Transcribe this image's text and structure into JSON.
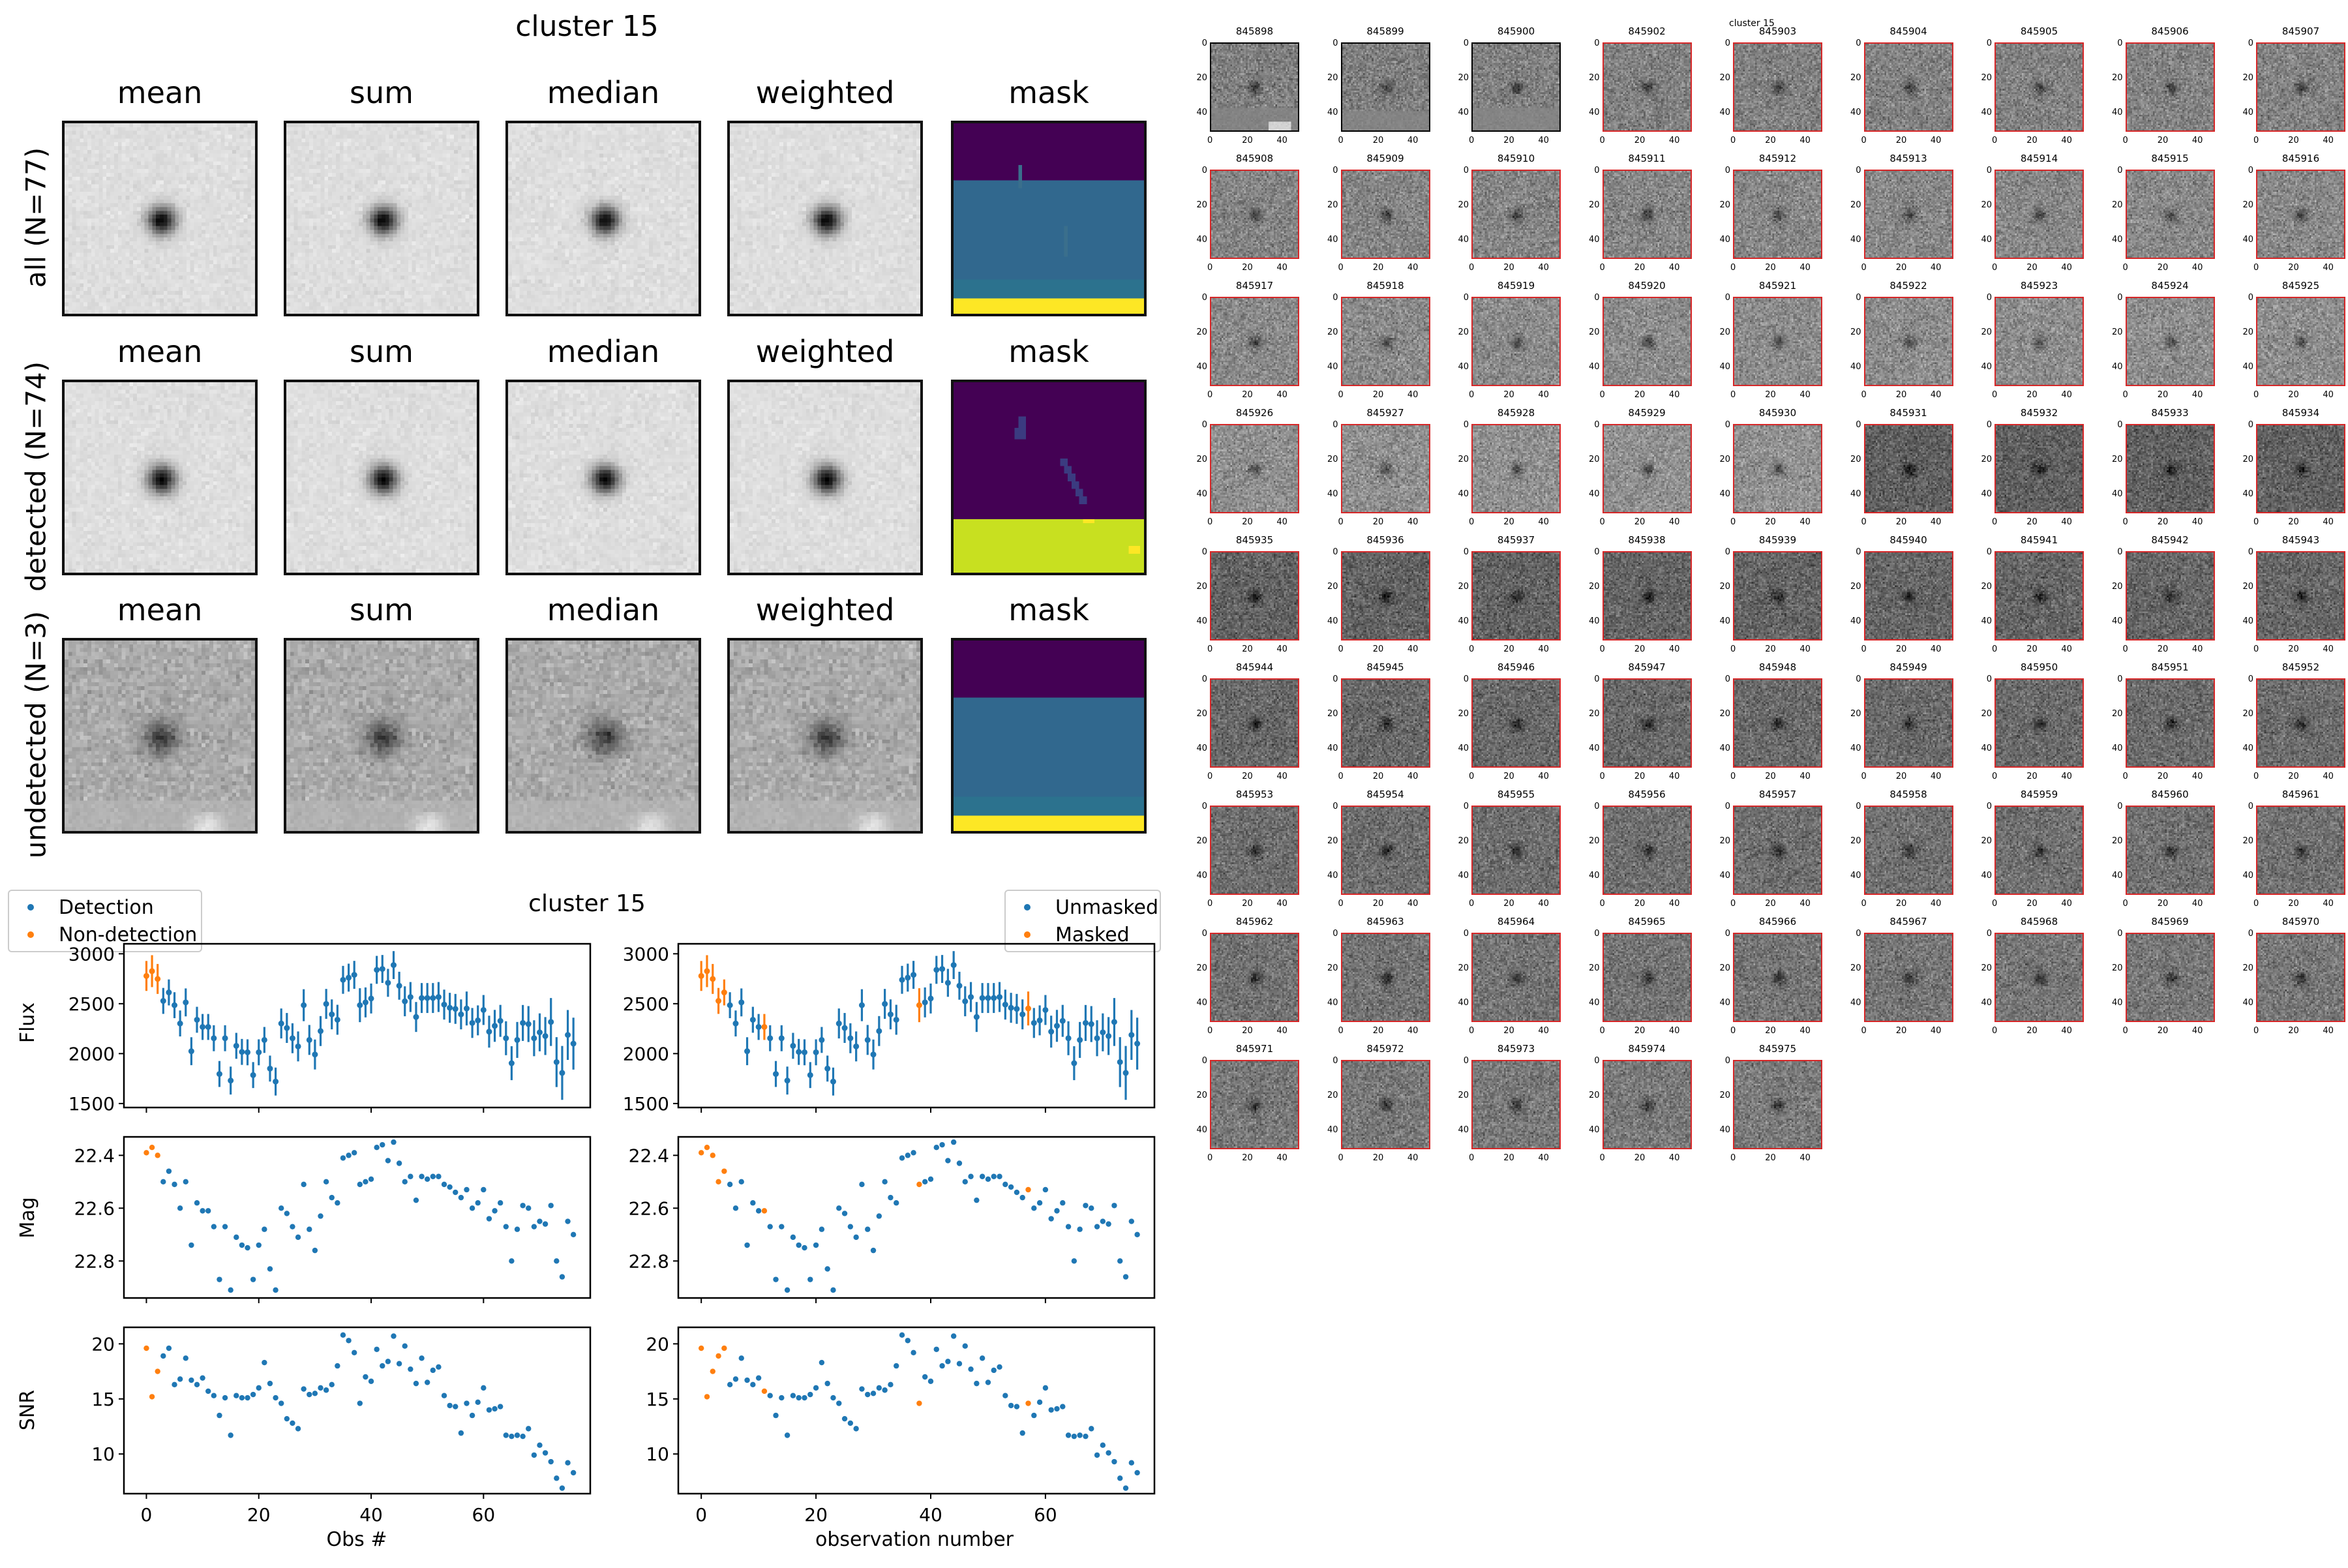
{
  "stamps": {
    "title": "cluster 15",
    "columns": [
      "mean",
      "sum",
      "median",
      "weighted",
      "mask"
    ],
    "rows": [
      {
        "label": "all (N=77)",
        "kind": "all"
      },
      {
        "label": "detected (N=74)",
        "kind": "detected"
      },
      {
        "label": "undetected (N=3)",
        "kind": "undetected"
      }
    ],
    "mask_colors": {
      "dark": "#440154",
      "mid": "#31688e",
      "teal": "#2c728e",
      "yellow": "#fde725",
      "lime": "#c8e020"
    }
  },
  "colors": {
    "detection": "#1f77b4",
    "non_detection": "#ff7f0e",
    "cutout_border_detected": "#d62728",
    "cutout_border_undetected": "#000000"
  },
  "cutouts": {
    "title": "cluster 15",
    "axis_ticks": [
      "0",
      "20",
      "40"
    ],
    "items": [
      {
        "id": "845898",
        "detected": false
      },
      {
        "id": "845899",
        "detected": false
      },
      {
        "id": "845900",
        "detected": false
      },
      {
        "id": "845902",
        "detected": true
      },
      {
        "id": "845903",
        "detected": true
      },
      {
        "id": "845904",
        "detected": true
      },
      {
        "id": "845905",
        "detected": true
      },
      {
        "id": "845906",
        "detected": true
      },
      {
        "id": "845907",
        "detected": true
      },
      {
        "id": "845908",
        "detected": true
      },
      {
        "id": "845909",
        "detected": true
      },
      {
        "id": "845910",
        "detected": true
      },
      {
        "id": "845911",
        "detected": true
      },
      {
        "id": "845912",
        "detected": true
      },
      {
        "id": "845913",
        "detected": true
      },
      {
        "id": "845914",
        "detected": true
      },
      {
        "id": "845915",
        "detected": true
      },
      {
        "id": "845916",
        "detected": true
      },
      {
        "id": "845917",
        "detected": true
      },
      {
        "id": "845918",
        "detected": true
      },
      {
        "id": "845919",
        "detected": true
      },
      {
        "id": "845920",
        "detected": true
      },
      {
        "id": "845921",
        "detected": true
      },
      {
        "id": "845922",
        "detected": true
      },
      {
        "id": "845923",
        "detected": true
      },
      {
        "id": "845924",
        "detected": true
      },
      {
        "id": "845925",
        "detected": true
      },
      {
        "id": "845926",
        "detected": true
      },
      {
        "id": "845927",
        "detected": true
      },
      {
        "id": "845928",
        "detected": true
      },
      {
        "id": "845929",
        "detected": true
      },
      {
        "id": "845930",
        "detected": true
      },
      {
        "id": "845931",
        "detected": true
      },
      {
        "id": "845932",
        "detected": true
      },
      {
        "id": "845933",
        "detected": true
      },
      {
        "id": "845934",
        "detected": true
      },
      {
        "id": "845935",
        "detected": true
      },
      {
        "id": "845936",
        "detected": true
      },
      {
        "id": "845937",
        "detected": true
      },
      {
        "id": "845938",
        "detected": true
      },
      {
        "id": "845939",
        "detected": true
      },
      {
        "id": "845940",
        "detected": true
      },
      {
        "id": "845941",
        "detected": true
      },
      {
        "id": "845942",
        "detected": true
      },
      {
        "id": "845943",
        "detected": true
      },
      {
        "id": "845944",
        "detected": true
      },
      {
        "id": "845945",
        "detected": true
      },
      {
        "id": "845946",
        "detected": true
      },
      {
        "id": "845947",
        "detected": true
      },
      {
        "id": "845948",
        "detected": true
      },
      {
        "id": "845949",
        "detected": true
      },
      {
        "id": "845950",
        "detected": true
      },
      {
        "id": "845951",
        "detected": true
      },
      {
        "id": "845952",
        "detected": true
      },
      {
        "id": "845953",
        "detected": true
      },
      {
        "id": "845954",
        "detected": true
      },
      {
        "id": "845955",
        "detected": true
      },
      {
        "id": "845956",
        "detected": true
      },
      {
        "id": "845957",
        "detected": true
      },
      {
        "id": "845958",
        "detected": true
      },
      {
        "id": "845959",
        "detected": true
      },
      {
        "id": "845960",
        "detected": true
      },
      {
        "id": "845961",
        "detected": true
      },
      {
        "id": "845962",
        "detected": true
      },
      {
        "id": "845963",
        "detected": true
      },
      {
        "id": "845964",
        "detected": true
      },
      {
        "id": "845965",
        "detected": true
      },
      {
        "id": "845966",
        "detected": true
      },
      {
        "id": "845967",
        "detected": true
      },
      {
        "id": "845968",
        "detected": true
      },
      {
        "id": "845969",
        "detected": true
      },
      {
        "id": "845970",
        "detected": true
      },
      {
        "id": "845971",
        "detected": true
      },
      {
        "id": "845972",
        "detected": true
      },
      {
        "id": "845973",
        "detected": true
      },
      {
        "id": "845974",
        "detected": true
      },
      {
        "id": "845975",
        "detected": true
      }
    ]
  },
  "chart_data": {
    "type": "scatter",
    "title": "cluster 15",
    "x": [
      0,
      1,
      2,
      3,
      4,
      5,
      6,
      7,
      8,
      9,
      10,
      11,
      12,
      13,
      14,
      15,
      16,
      17,
      18,
      19,
      20,
      21,
      22,
      23,
      24,
      25,
      26,
      27,
      28,
      29,
      30,
      31,
      32,
      33,
      34,
      35,
      36,
      37,
      38,
      39,
      40,
      41,
      42,
      43,
      44,
      45,
      46,
      47,
      48,
      49,
      50,
      51,
      52,
      53,
      54,
      55,
      56,
      57,
      58,
      59,
      60,
      61,
      62,
      63,
      64,
      65,
      66,
      67,
      68,
      69,
      70,
      71,
      72,
      73,
      74,
      75,
      76
    ],
    "xlim": [
      -4,
      79
    ],
    "xticks": [
      0,
      20,
      40,
      60
    ],
    "xlabel_left": "Obs #",
    "xlabel_right": "observation number",
    "legend_left": {
      "position": "upper-left",
      "entries": [
        "Detection",
        "Non-detection"
      ]
    },
    "legend_right": {
      "position": "upper-right",
      "entries": [
        "Unmasked",
        "Masked"
      ]
    },
    "non_detection_indices": [
      0,
      1,
      2
    ],
    "masked_indices": [
      0,
      1,
      2,
      3,
      4,
      11,
      38,
      57
    ],
    "flux": {
      "ylabel": "Flux",
      "ylim": [
        1460,
        3100
      ],
      "yticks": [
        1500,
        2000,
        2500,
        3000
      ],
      "values": [
        2778,
        2826,
        2748,
        2528,
        2613,
        2485,
        2302,
        2513,
        2024,
        2339,
        2267,
        2267,
        2154,
        1796,
        2154,
        1730,
        2078,
        2017,
        2013,
        1785,
        2013,
        2137,
        1850,
        1720,
        2302,
        2257,
        2154,
        2072,
        2485,
        2137,
        1991,
        2226,
        2498,
        2393,
        2339,
        2739,
        2761,
        2789,
        2485,
        2513,
        2552,
        2839,
        2848,
        2709,
        2887,
        2680,
        2524,
        2567,
        2367,
        2557,
        2557,
        2557,
        2567,
        2491,
        2459,
        2448,
        2393,
        2452,
        2307,
        2333,
        2437,
        2220,
        2278,
        2328,
        2154,
        1904,
        2137,
        2307,
        2296,
        2154,
        2213,
        2176,
        2317,
        1915,
        1807,
        2187,
        2100
      ],
      "errors": [
        150,
        160,
        150,
        130,
        130,
        130,
        130,
        140,
        140,
        130,
        130,
        130,
        130,
        130,
        130,
        140,
        130,
        130,
        130,
        130,
        130,
        130,
        130,
        140,
        150,
        150,
        150,
        150,
        160,
        150,
        150,
        150,
        150,
        150,
        150,
        140,
        140,
        140,
        170,
        150,
        150,
        140,
        140,
        140,
        140,
        140,
        150,
        150,
        150,
        150,
        150,
        150,
        150,
        150,
        150,
        150,
        150,
        170,
        150,
        150,
        150,
        160,
        160,
        160,
        170,
        170,
        180,
        180,
        180,
        180,
        190,
        190,
        240,
        250,
        270,
        250,
        260
      ]
    },
    "mag": {
      "ylabel": "Mag",
      "ylim": [
        22.94,
        22.33
      ],
      "yticks": [
        22.4,
        22.6,
        22.8
      ],
      "ytick_labels": [
        "22.4",
        "22.6",
        "22.8"
      ],
      "values": [
        22.39,
        22.37,
        22.4,
        22.5,
        22.46,
        22.51,
        22.6,
        22.5,
        22.74,
        22.58,
        22.61,
        22.61,
        22.67,
        22.87,
        22.67,
        22.91,
        22.71,
        22.74,
        22.75,
        22.87,
        22.74,
        22.68,
        22.83,
        22.91,
        22.6,
        22.62,
        22.67,
        22.71,
        22.51,
        22.68,
        22.76,
        22.63,
        22.5,
        22.56,
        22.58,
        22.41,
        22.4,
        22.39,
        22.51,
        22.5,
        22.49,
        22.37,
        22.36,
        22.42,
        22.35,
        22.43,
        22.5,
        22.48,
        22.57,
        22.48,
        22.49,
        22.48,
        22.48,
        22.51,
        22.52,
        22.54,
        22.56,
        22.53,
        22.6,
        22.58,
        22.53,
        22.64,
        22.61,
        22.58,
        22.67,
        22.8,
        22.68,
        22.59,
        22.6,
        22.67,
        22.65,
        22.66,
        22.59,
        22.8,
        22.86,
        22.65,
        22.7
      ]
    },
    "snr": {
      "ylabel": "SNR",
      "ylim": [
        6.4,
        21.5
      ],
      "yticks": [
        10,
        15,
        20
      ],
      "values": [
        19.6,
        15.2,
        17.5,
        18.9,
        19.6,
        16.3,
        16.8,
        18.7,
        16.7,
        16.3,
        16.9,
        15.7,
        15.3,
        13.5,
        15.1,
        11.7,
        15.3,
        15.1,
        15.1,
        15.4,
        16.0,
        18.3,
        16.4,
        15.1,
        14.6,
        13.2,
        12.8,
        12.3,
        15.9,
        15.4,
        15.5,
        16.0,
        15.8,
        16.3,
        18.0,
        20.8,
        20.3,
        19.2,
        14.6,
        17.0,
        16.6,
        19.5,
        18.0,
        18.4,
        20.7,
        18.2,
        19.8,
        17.7,
        16.4,
        18.7,
        16.5,
        17.6,
        17.9,
        15.3,
        14.4,
        14.3,
        11.9,
        14.6,
        13.5,
        14.7,
        16.0,
        14.0,
        14.1,
        14.3,
        11.7,
        11.6,
        11.7,
        11.6,
        12.3,
        9.9,
        10.8,
        10.1,
        9.3,
        7.8,
        6.9,
        9.2,
        8.3
      ]
    }
  }
}
